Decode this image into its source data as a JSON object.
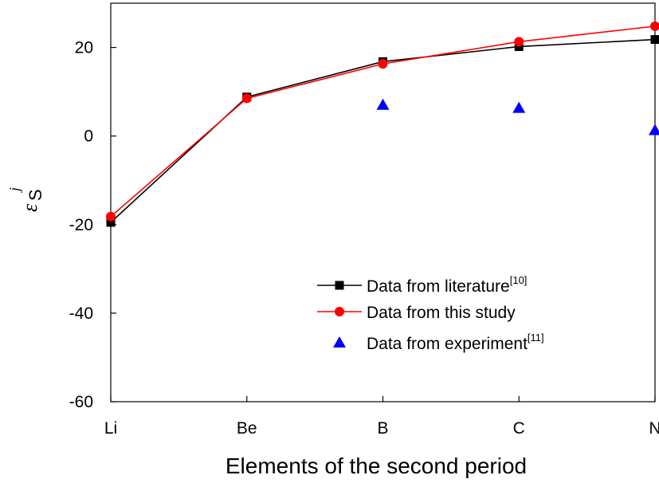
{
  "chart_data": {
    "type": "line",
    "title": "",
    "xlabel": "Elements of the second period",
    "ylabel": {
      "symbol": "ε",
      "subscript": "S",
      "superscript": "j"
    },
    "categories": [
      "Li",
      "Be",
      "B",
      "C",
      "N"
    ],
    "ylim": [
      -60,
      30
    ],
    "yticks": [
      20,
      0,
      -20,
      -40,
      -60
    ],
    "grid": false,
    "legend_position": "lower-right",
    "series": [
      {
        "name": "Data from literature",
        "ref": "[10]",
        "marker": "square",
        "line": true,
        "color": "#000000",
        "values": [
          -19.5,
          8.8,
          16.8,
          20.2,
          21.8
        ]
      },
      {
        "name": "Data from this study",
        "ref": "",
        "marker": "circle",
        "line": true,
        "color": "#ff0000",
        "values": [
          -18.2,
          8.5,
          16.3,
          21.3,
          24.8
        ]
      },
      {
        "name": "Data from experiment",
        "ref": "[11]",
        "marker": "triangle",
        "line": false,
        "color": "#0000ff",
        "values": [
          null,
          null,
          7.0,
          6.3,
          1.3
        ]
      }
    ]
  }
}
